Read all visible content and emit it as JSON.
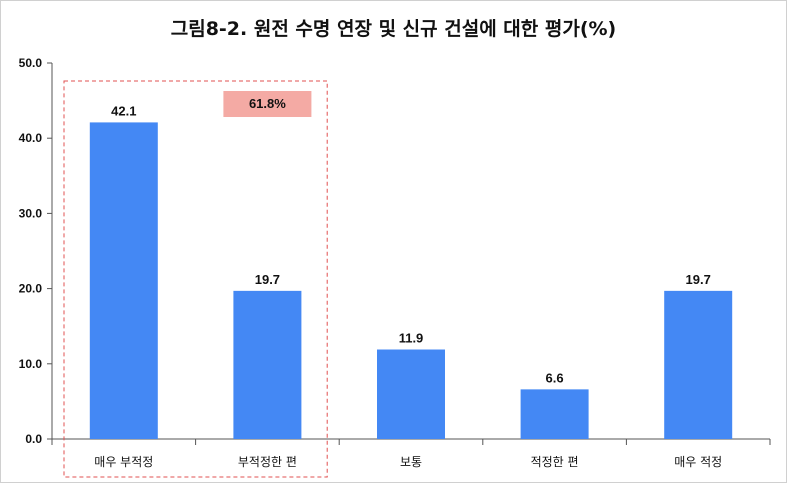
{
  "chart_data": {
    "type": "bar",
    "title": "그림8-2. 원전 수명 연장 및 신규 건설에 대한 평가(%)",
    "categories": [
      "매우 부적정",
      "부적정한 편",
      "보통",
      "적정한 편",
      "매우 적정"
    ],
    "values": [
      42.1,
      19.7,
      11.9,
      6.6,
      19.7
    ],
    "value_labels": [
      "42.1",
      "19.7",
      "11.9",
      "6.6",
      "19.7"
    ],
    "y_ticks": [
      "0.0",
      "10.0",
      "20.0",
      "30.0",
      "40.0",
      "50.0"
    ],
    "ylim": [
      0,
      50
    ],
    "xlabel": "",
    "ylabel": "",
    "grid": false,
    "annotation": {
      "text": "61.8%",
      "covers_categories": [
        "매우 부적정",
        "부적정한 편"
      ],
      "box_color": "#f4aaa4",
      "outline_color": "#e05050"
    },
    "bar_color": "#4488f4"
  }
}
